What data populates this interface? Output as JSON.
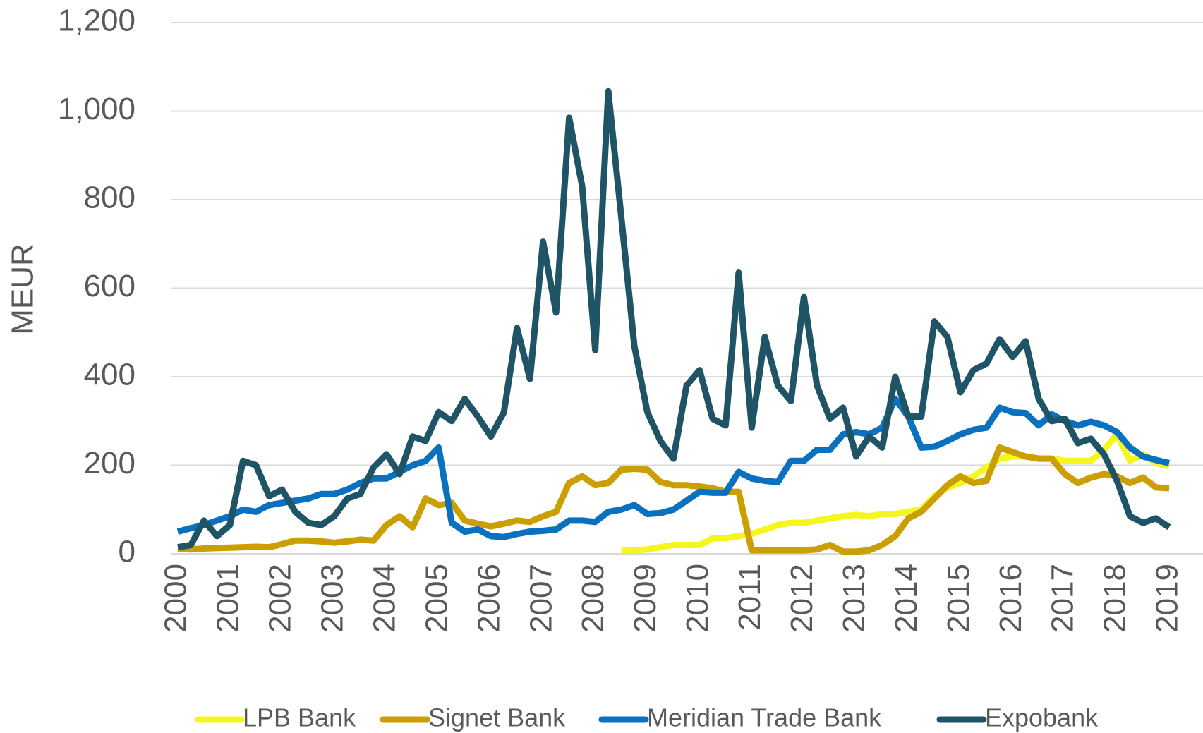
{
  "chart_data": {
    "type": "line",
    "y_label": "MEUR",
    "categories": [
      "2000",
      null,
      null,
      null,
      "2001",
      null,
      null,
      null,
      "2002",
      null,
      null,
      null,
      "2003",
      null,
      null,
      null,
      "2004",
      null,
      null,
      null,
      "2005",
      null,
      null,
      null,
      "2006",
      null,
      null,
      null,
      "2007",
      null,
      null,
      null,
      "2008",
      null,
      null,
      null,
      "2009",
      null,
      null,
      null,
      "2010",
      null,
      null,
      null,
      "2011",
      null,
      null,
      null,
      "2012",
      null,
      null,
      null,
      "2013",
      null,
      null,
      null,
      "2014",
      null,
      null,
      null,
      "2015",
      null,
      null,
      null,
      "2016",
      null,
      null,
      null,
      "2017",
      null,
      null,
      null,
      "2018",
      null,
      null,
      null,
      "2019"
    ],
    "ylim": [
      0,
      1200
    ],
    "yticks": [
      0,
      200,
      400,
      600,
      800,
      {
        "value": 1000,
        "label": "1,000"
      },
      {
        "value": 1200,
        "label": "1,200"
      }
    ],
    "grid": true,
    "legend": "bottom",
    "series": [
      {
        "name": "LPB Bank",
        "color": "#f5f51f",
        "values": [
          null,
          null,
          null,
          null,
          null,
          null,
          null,
          null,
          null,
          null,
          null,
          null,
          null,
          null,
          null,
          null,
          null,
          null,
          null,
          null,
          null,
          null,
          null,
          null,
          null,
          null,
          null,
          null,
          null,
          null,
          null,
          null,
          null,
          null,
          8,
          8,
          10,
          15,
          20,
          20,
          20,
          35,
          35,
          40,
          45,
          55,
          65,
          70,
          70,
          75,
          80,
          85,
          88,
          85,
          90,
          90,
          95,
          100,
          130,
          150,
          160,
          175,
          195,
          215,
          220,
          220,
          215,
          215,
          210,
          210,
          210,
          235,
          270,
          210,
          225,
          205,
          198
        ]
      },
      {
        "name": "Signet Bank",
        "color": "#cc9f00",
        "values": [
          12,
          10,
          12,
          13,
          14,
          15,
          16,
          15,
          22,
          30,
          30,
          28,
          25,
          28,
          32,
          30,
          65,
          85,
          60,
          125,
          110,
          115,
          75,
          68,
          62,
          68,
          75,
          72,
          85,
          95,
          160,
          175,
          155,
          160,
          190,
          192,
          190,
          162,
          155,
          155,
          152,
          148,
          140,
          140,
          8,
          8,
          8,
          8,
          8,
          10,
          20,
          5,
          5,
          8,
          20,
          40,
          80,
          95,
          125,
          155,
          175,
          160,
          165,
          240,
          230,
          220,
          215,
          215,
          180,
          160,
          172,
          180,
          175,
          160,
          172,
          150,
          148
        ]
      },
      {
        "name": "Meridian Trade Bank",
        "color": "#0a70c0",
        "values": [
          50,
          58,
          65,
          75,
          85,
          100,
          95,
          110,
          115,
          120,
          125,
          135,
          135,
          145,
          160,
          170,
          170,
          185,
          200,
          210,
          240,
          70,
          50,
          55,
          40,
          38,
          45,
          50,
          52,
          55,
          75,
          75,
          72,
          95,
          100,
          110,
          90,
          92,
          100,
          120,
          140,
          138,
          138,
          185,
          170,
          165,
          162,
          210,
          210,
          235,
          235,
          270,
          275,
          270,
          285,
          350,
          310,
          240,
          242,
          255,
          270,
          280,
          285,
          330,
          320,
          318,
          290,
          315,
          300,
          290,
          298,
          290,
          275,
          240,
          220,
          212,
          205
        ]
      },
      {
        "name": "Expobank",
        "color": "#1f5466",
        "values": [
          15,
          20,
          75,
          40,
          65,
          210,
          200,
          130,
          145,
          95,
          70,
          65,
          85,
          125,
          135,
          195,
          225,
          180,
          265,
          255,
          320,
          300,
          350,
          310,
          265,
          320,
          510,
          395,
          705,
          545,
          985,
          830,
          460,
          1045,
          760,
          470,
          320,
          255,
          215,
          380,
          415,
          305,
          290,
          635,
          285,
          490,
          380,
          345,
          580,
          380,
          305,
          330,
          220,
          265,
          240,
          400,
          310,
          310,
          525,
          490,
          365,
          415,
          430,
          485,
          445,
          480,
          350,
          300,
          305,
          250,
          260,
          225,
          165,
          85,
          70,
          80,
          60
        ]
      }
    ]
  }
}
